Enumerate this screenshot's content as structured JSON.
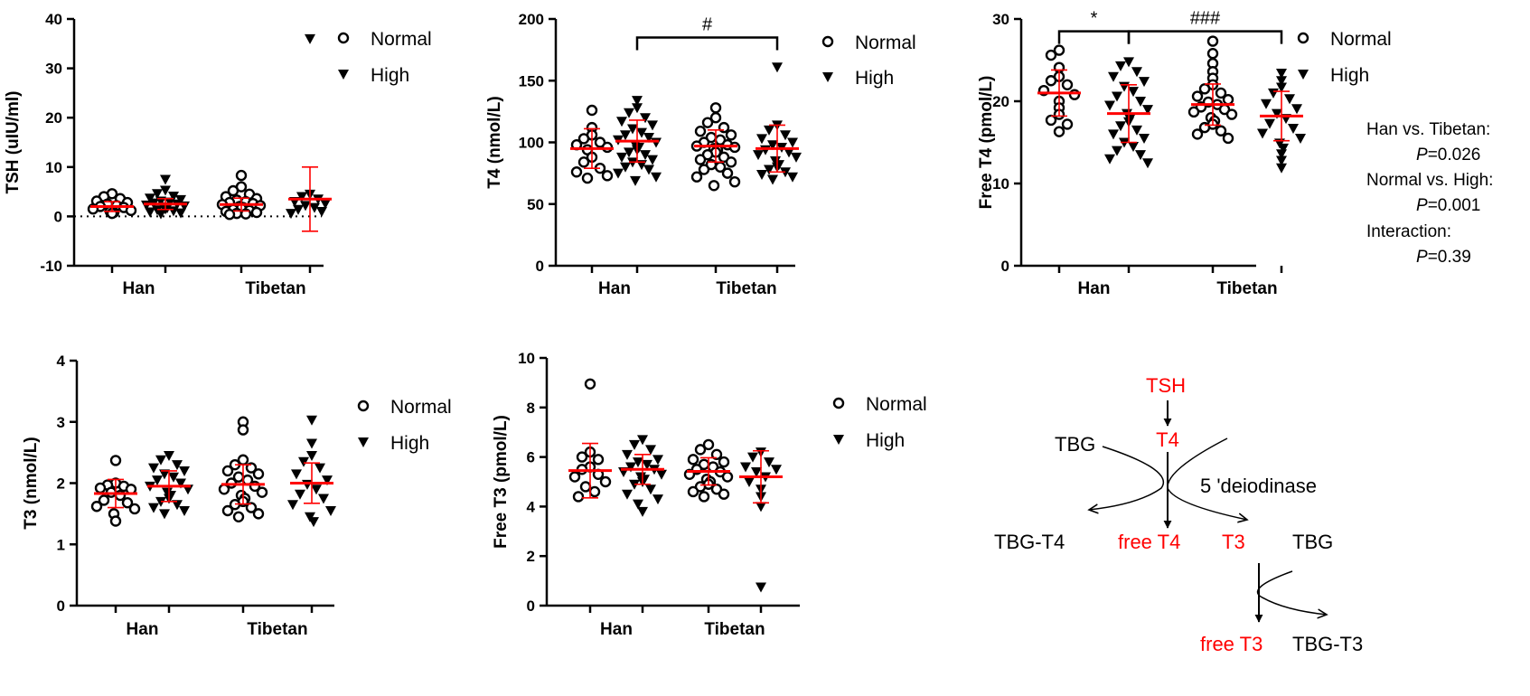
{
  "colors": {
    "ink": "#000000",
    "accent": "#ff0000"
  },
  "legend_labels": {
    "normal": "Normal",
    "high": "High"
  },
  "chart_data": [
    {
      "id": "tsh",
      "type": "scatter",
      "ylabel": "TSH (uIU/ml)",
      "ylim": [
        -10,
        40
      ],
      "yticks": [
        -10,
        0,
        10,
        20,
        30,
        40
      ],
      "categories": [
        "Han",
        "Tibetan"
      ],
      "zero_line": true,
      "series": [
        {
          "name": "Normal",
          "marker": "circle",
          "values": {
            "Han": [
              4.6,
              4.0,
              3.6,
              3.1,
              2.8,
              2.5,
              2.2,
              2.0,
              1.8,
              1.5,
              1.2,
              1.0,
              0.8,
              0.6
            ],
            "Tibetan": [
              8.3,
              6.0,
              5.2,
              4.5,
              4.0,
              3.6,
              3.3,
              3.0,
              2.8,
              2.6,
              2.4,
              2.2,
              2.0,
              1.8,
              1.6,
              1.4,
              1.2,
              1.0,
              0.8,
              0.6,
              0.5,
              0.4
            ]
          }
        },
        {
          "name": "High",
          "marker": "triangle",
          "values": {
            "Han": [
              7.5,
              5.3,
              4.6,
              4.1,
              3.7,
              3.4,
              3.1,
              2.9,
              2.7,
              2.5,
              2.3,
              2.1,
              1.9,
              1.7,
              1.5,
              1.3,
              1.1,
              0.9,
              0.7,
              0.5
            ],
            "Tibetan": [
              36.0,
              4.5,
              4.0,
              3.5,
              3.0,
              2.6,
              2.2,
              1.8,
              1.4,
              1.0,
              0.6
            ]
          }
        }
      ],
      "summary": {
        "Normal": {
          "Han": {
            "mean": 2.0,
            "sd": 1.0
          },
          "Tibetan": {
            "mean": 2.4,
            "sd": 1.3
          }
        },
        "High": {
          "Han": {
            "mean": 2.5,
            "sd": 1.1
          },
          "Tibetan": {
            "mean": 3.5,
            "sd": 6.5
          }
        }
      },
      "annotations": []
    },
    {
      "id": "t4",
      "type": "scatter",
      "ylabel": "T4 (nmol/L)",
      "ylim": [
        0,
        200
      ],
      "yticks": [
        0,
        50,
        100,
        150,
        200
      ],
      "categories": [
        "Han",
        "Tibetan"
      ],
      "zero_line": false,
      "series": [
        {
          "name": "Normal",
          "marker": "circle",
          "values": {
            "Han": [
              126,
              112,
              106,
              103,
              100,
              98,
              96,
              94,
              88,
              84,
              79,
              76,
              73,
              71
            ],
            "Tibetan": [
              128,
              120,
              116,
              112,
              109,
              106,
              104,
              102,
              100,
              98,
              97,
              96,
              95,
              94,
              92,
              90,
              88,
              86,
              84,
              82,
              80,
              78,
              75,
              72,
              68,
              65
            ]
          }
        },
        {
          "name": "High",
          "marker": "triangle",
          "values": {
            "Han": [
              134,
              128,
              124,
              120,
              117,
              114,
              111,
              108,
              106,
              104,
              102,
              100,
              98,
              96,
              94,
              92,
              90,
              88,
              86,
              84,
              82,
              80,
              78,
              75,
              72,
              69
            ],
            "Tibetan": [
              161,
              114,
              110,
              106,
              103,
              100,
              98,
              96,
              94,
              92,
              90,
              88,
              85,
              82,
              80,
              78,
              76,
              74,
              72,
              70
            ]
          }
        }
      ],
      "summary": {
        "Normal": {
          "Han": {
            "mean": 95,
            "sd": 16
          },
          "Tibetan": {
            "mean": 97,
            "sd": 13
          }
        },
        "High": {
          "Han": {
            "mean": 101,
            "sd": 17
          },
          "Tibetan": {
            "mean": 95,
            "sd": 19
          }
        }
      },
      "annotations": [
        {
          "label": "#",
          "from": "High|Han",
          "to": "High|Tibetan",
          "y": 185
        }
      ]
    },
    {
      "id": "ft4",
      "type": "scatter",
      "ylabel": "Free T4 (pmol/L)",
      "ylim": [
        0,
        30
      ],
      "yticks": [
        0,
        10,
        20,
        30
      ],
      "categories": [
        "Han",
        "Tibetan"
      ],
      "zero_line": false,
      "series": [
        {
          "name": "Normal",
          "marker": "circle",
          "values": {
            "Han": [
              26.2,
              25.6,
              24.1,
              23.0,
              22.5,
              22.0,
              21.3,
              20.8,
              20.0,
              19.2,
              18.4,
              17.7,
              17.2,
              16.3
            ],
            "Tibetan": [
              27.3,
              25.8,
              24.6,
              23.6,
              22.8,
              22.0,
              21.5,
              21.0,
              20.6,
              20.2,
              19.9,
              19.6,
              19.3,
              19.0,
              18.7,
              18.4,
              18.0,
              17.6,
              17.2,
              16.8,
              16.4,
              16.0,
              15.5
            ]
          }
        },
        {
          "name": "High",
          "marker": "triangle",
          "values": {
            "Han": [
              24.8,
              24.3,
              23.6,
              23.0,
              22.4,
              21.8,
              21.2,
              20.6,
              20.0,
              19.5,
              19.0,
              18.5,
              18.0,
              17.5,
              17.0,
              16.5,
              16.0,
              15.5,
              15.0,
              14.5,
              14.0,
              13.5,
              13.0,
              12.5
            ],
            "Tibetan": [
              23.4,
              22.5,
              21.7,
              21.0,
              20.3,
              19.7,
              19.1,
              18.5,
              17.9,
              17.3,
              16.7,
              16.1,
              15.5,
              14.9,
              14.3,
              13.6,
              12.8,
              11.9
            ]
          }
        }
      ],
      "summary": {
        "Normal": {
          "Han": {
            "mean": 21.0,
            "sd": 2.8
          },
          "Tibetan": {
            "mean": 19.6,
            "sd": 2.5
          }
        },
        "High": {
          "Han": {
            "mean": 18.5,
            "sd": 3.5
          },
          "Tibetan": {
            "mean": 18.2,
            "sd": 3.0
          }
        }
      },
      "annotations": [
        {
          "label": "*",
          "from": "Normal|Han",
          "to": "High|Han",
          "y": 28.5
        },
        {
          "label": "###",
          "from": "High|Han",
          "to": "High|Tibetan",
          "y": 28.5
        }
      ]
    },
    {
      "id": "t3",
      "type": "scatter",
      "ylabel": "T3 (nmol/L)",
      "ylim": [
        0,
        4
      ],
      "yticks": [
        0,
        1,
        2,
        3,
        4
      ],
      "categories": [
        "Han",
        "Tibetan"
      ],
      "zero_line": false,
      "series": [
        {
          "name": "Normal",
          "marker": "circle",
          "values": {
            "Han": [
              2.37,
              2.0,
              1.97,
              1.95,
              1.92,
              1.9,
              1.85,
              1.8,
              1.72,
              1.68,
              1.62,
              1.58,
              1.5,
              1.38
            ],
            "Tibetan": [
              3.0,
              2.87,
              2.38,
              2.3,
              2.25,
              2.2,
              2.15,
              2.1,
              2.05,
              2.0,
              1.95,
              1.9,
              1.85,
              1.8,
              1.75,
              1.7,
              1.65,
              1.6,
              1.55,
              1.5,
              1.45
            ]
          }
        },
        {
          "name": "High",
          "marker": "triangle",
          "values": {
            "Han": [
              2.45,
              2.38,
              2.3,
              2.25,
              2.2,
              2.15,
              2.1,
              2.05,
              2.0,
              1.95,
              1.9,
              1.85,
              1.8,
              1.75,
              1.7,
              1.65,
              1.6,
              1.55,
              1.5
            ],
            "Tibetan": [
              3.03,
              2.65,
              2.45,
              2.35,
              2.25,
              2.15,
              2.05,
              1.98,
              1.9,
              1.82,
              1.75,
              1.65,
              1.55,
              1.45,
              1.37
            ]
          }
        }
      ],
      "summary": {
        "Normal": {
          "Han": {
            "mean": 1.83,
            "sd": 0.23
          },
          "Tibetan": {
            "mean": 1.98,
            "sd": 0.32
          }
        },
        "High": {
          "Han": {
            "mean": 1.95,
            "sd": 0.25
          },
          "Tibetan": {
            "mean": 2.0,
            "sd": 0.33
          }
        }
      },
      "annotations": []
    },
    {
      "id": "ft3",
      "type": "scatter",
      "ylabel": "Free T3 (pmol/L)",
      "ylim": [
        0,
        10
      ],
      "yticks": [
        0,
        2,
        4,
        6,
        8,
        10
      ],
      "categories": [
        "Han",
        "Tibetan"
      ],
      "zero_line": false,
      "series": [
        {
          "name": "Normal",
          "marker": "circle",
          "values": {
            "Han": [
              8.95,
              6.2,
              6.0,
              5.9,
              5.6,
              5.5,
              5.3,
              5.2,
              5.0,
              4.8,
              4.6,
              4.4
            ],
            "Tibetan": [
              6.5,
              6.3,
              6.1,
              5.9,
              5.8,
              5.7,
              5.6,
              5.5,
              5.4,
              5.3,
              5.2,
              5.1,
              5.0,
              4.9,
              4.8,
              4.7,
              4.6,
              4.5,
              4.4
            ]
          }
        },
        {
          "name": "High",
          "marker": "triangle",
          "values": {
            "Han": [
              6.7,
              6.5,
              6.3,
              6.1,
              5.9,
              5.8,
              5.7,
              5.6,
              5.5,
              5.4,
              5.3,
              5.2,
              5.1,
              5.0,
              4.9,
              4.7,
              4.5,
              4.3,
              4.1,
              3.8
            ],
            "Tibetan": [
              6.2,
              6.0,
              5.8,
              5.6,
              5.5,
              5.4,
              5.2,
              5.0,
              4.7,
              4.4,
              4.0,
              0.75
            ]
          }
        }
      ],
      "summary": {
        "Normal": {
          "Han": {
            "mean": 5.45,
            "sd": 1.1
          },
          "Tibetan": {
            "mean": 5.42,
            "sd": 0.55
          }
        },
        "High": {
          "Han": {
            "mean": 5.5,
            "sd": 0.6
          },
          "Tibetan": {
            "mean": 5.2,
            "sd": 1.05
          }
        }
      },
      "annotations": []
    }
  ],
  "stats_note": {
    "lines": [
      {
        "label": "Han vs. Tibetan:",
        "p_prefix": "P",
        "p_value": "=0.026"
      },
      {
        "label": "Normal vs. High:",
        "p_prefix": "P",
        "p_value": "=0.001"
      },
      {
        "label": "Interaction:",
        "p_prefix": "P",
        "p_value": "=0.39"
      }
    ]
  },
  "diagram": {
    "tsh": "TSH",
    "t4": "T4",
    "tbg_left": "TBG",
    "deiodinase": "5 'deiodinase",
    "tbg_t4": "TBG-T4",
    "free_t4": "free T4",
    "t3": "T3",
    "tbg_right": "TBG",
    "free_t3": "free T3",
    "tbg_t3": "TBG-T3"
  }
}
